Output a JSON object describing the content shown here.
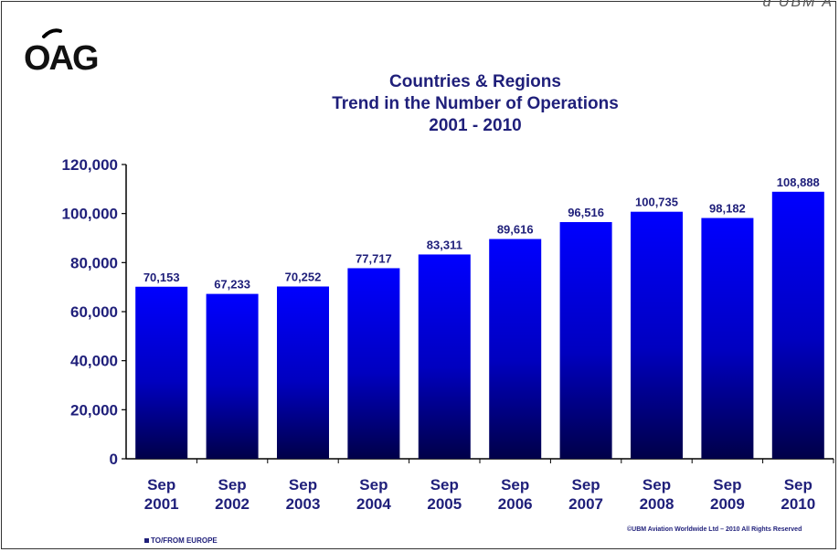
{
  "brand": {
    "logo_text": "OAG",
    "corner_text": "d UBM A"
  },
  "copyright": "©UBM Aviation Worldwide Ltd – 2010 All Rights Reserved",
  "chart_data": {
    "type": "bar",
    "title": [
      "Countries & Regions",
      "Trend in the Number of Operations",
      "2001 - 2010"
    ],
    "categories": [
      [
        "Sep",
        "2001"
      ],
      [
        "Sep",
        "2002"
      ],
      [
        "Sep",
        "2003"
      ],
      [
        "Sep",
        "2004"
      ],
      [
        "Sep",
        "2005"
      ],
      [
        "Sep",
        "2006"
      ],
      [
        "Sep",
        "2007"
      ],
      [
        "Sep",
        "2008"
      ],
      [
        "Sep",
        "2009"
      ],
      [
        "Sep",
        "2010"
      ]
    ],
    "series": [
      {
        "name": "TO/FROM EUROPE",
        "values": [
          70153,
          67233,
          70252,
          77717,
          83311,
          89616,
          96516,
          100735,
          98182,
          108888
        ],
        "labels": [
          "70,153",
          "67,233",
          "70,252",
          "77,717",
          "83,311",
          "89,616",
          "96,516",
          "100,735",
          "98,182",
          "108,888"
        ]
      }
    ],
    "yticks": [
      "0",
      "20,000",
      "40,000",
      "60,000",
      "80,000",
      "100,000",
      "120,000"
    ],
    "ylim": [
      0,
      120000
    ],
    "grid": false,
    "legend": "bottom-left",
    "colors": {
      "bar_top": "#0000ff",
      "bar_bottom": "#000040",
      "text": "#1f1f7a"
    }
  }
}
